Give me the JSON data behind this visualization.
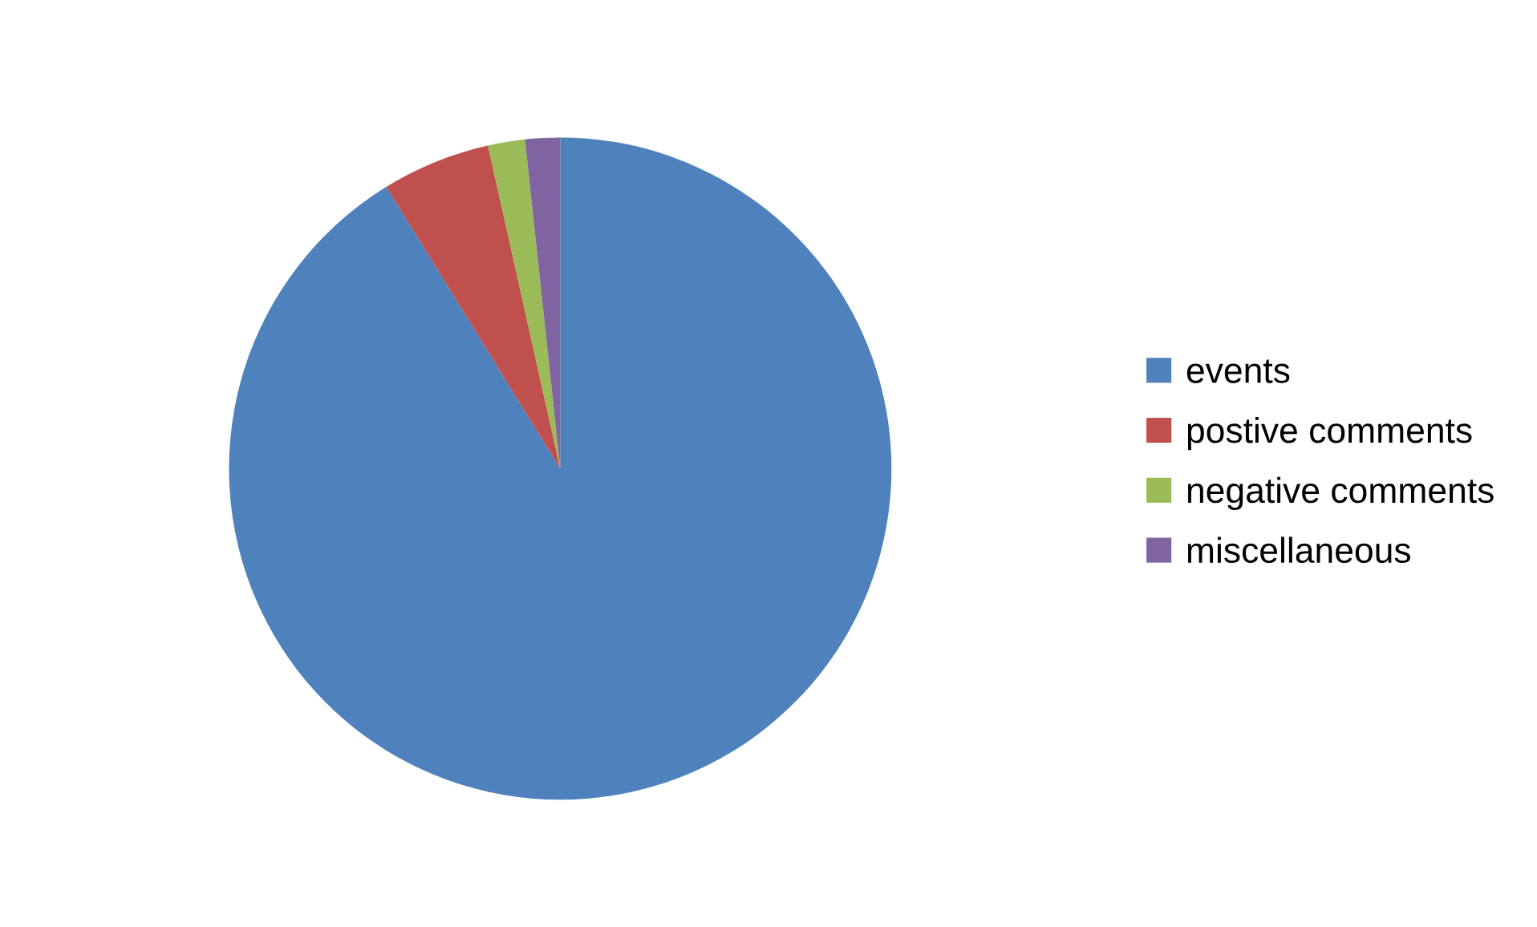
{
  "chart_data": {
    "type": "pie",
    "categories": [
      "events",
      "postive comments",
      "negative comments",
      "miscellaneous"
    ],
    "values": [
      91.2,
      5.3,
      1.8,
      1.7
    ],
    "colors": [
      "#4f81bd",
      "#c0504d",
      "#9bbb59",
      "#8064a2"
    ],
    "legend": "right"
  }
}
